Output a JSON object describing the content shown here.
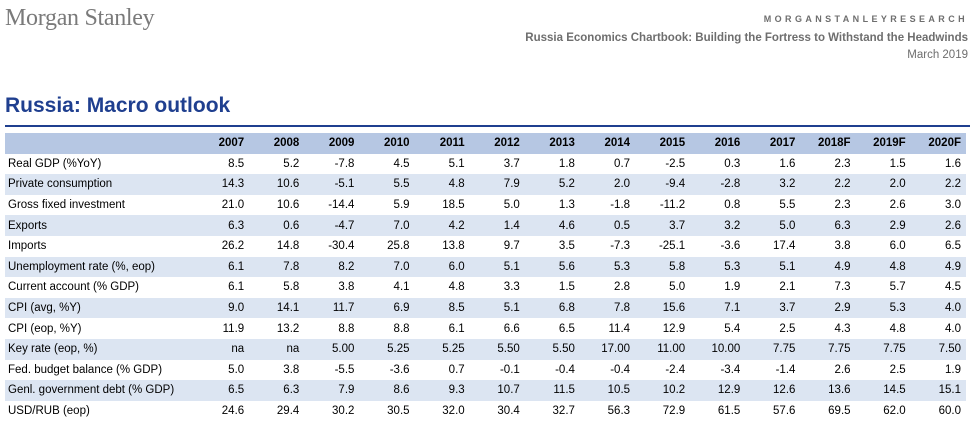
{
  "header": {
    "logo": "Morgan Stanley",
    "research": "MORGANSTANLEYRESEARCH",
    "subtitle": "Russia Economics Chartbook: Building the Fortress to Withstand the Headwinds",
    "date": "March 2019"
  },
  "title": "Russia: Macro outlook",
  "table": {
    "columns": [
      "2007",
      "2008",
      "2009",
      "2010",
      "2011",
      "2012",
      "2013",
      "2014",
      "2015",
      "2016",
      "2017",
      "2018F",
      "2019F",
      "2020F"
    ],
    "rows": [
      {
        "label": "Real GDP (%YoY)",
        "values": [
          "8.5",
          "5.2",
          "-7.8",
          "4.5",
          "5.1",
          "3.7",
          "1.8",
          "0.7",
          "-2.5",
          "0.3",
          "1.6",
          "2.3",
          "1.5",
          "1.6"
        ]
      },
      {
        "label": "Private consumption",
        "values": [
          "14.3",
          "10.6",
          "-5.1",
          "5.5",
          "4.8",
          "7.9",
          "5.2",
          "2.0",
          "-9.4",
          "-2.8",
          "3.2",
          "2.2",
          "2.0",
          "2.2"
        ]
      },
      {
        "label": "Gross fixed investment",
        "values": [
          "21.0",
          "10.6",
          "-14.4",
          "5.9",
          "18.5",
          "5.0",
          "1.3",
          "-1.8",
          "-11.2",
          "0.8",
          "5.5",
          "2.3",
          "2.6",
          "3.0"
        ]
      },
      {
        "label": "Exports",
        "values": [
          "6.3",
          "0.6",
          "-4.7",
          "7.0",
          "4.2",
          "1.4",
          "4.6",
          "0.5",
          "3.7",
          "3.2",
          "5.0",
          "6.3",
          "2.9",
          "2.6"
        ]
      },
      {
        "label": "Imports",
        "values": [
          "26.2",
          "14.8",
          "-30.4",
          "25.8",
          "13.8",
          "9.7",
          "3.5",
          "-7.3",
          "-25.1",
          "-3.6",
          "17.4",
          "3.8",
          "6.0",
          "6.5"
        ]
      },
      {
        "label": "Unemployment rate (%, eop)",
        "values": [
          "6.1",
          "7.8",
          "8.2",
          "7.0",
          "6.0",
          "5.1",
          "5.6",
          "5.3",
          "5.8",
          "5.3",
          "5.1",
          "4.9",
          "4.8",
          "4.9"
        ]
      },
      {
        "label": "Current account (% GDP)",
        "values": [
          "6.1",
          "5.8",
          "3.8",
          "4.1",
          "4.8",
          "3.3",
          "1.5",
          "2.8",
          "5.0",
          "1.9",
          "2.1",
          "7.3",
          "5.7",
          "4.5"
        ]
      },
      {
        "label": "CPI (avg, %Y)",
        "values": [
          "9.0",
          "14.1",
          "11.7",
          "6.9",
          "8.5",
          "5.1",
          "6.8",
          "7.8",
          "15.6",
          "7.1",
          "3.7",
          "2.9",
          "5.3",
          "4.0"
        ]
      },
      {
        "label": "CPI (eop, %Y)",
        "values": [
          "11.9",
          "13.2",
          "8.8",
          "8.8",
          "6.1",
          "6.6",
          "6.5",
          "11.4",
          "12.9",
          "5.4",
          "2.5",
          "4.3",
          "4.8",
          "4.0"
        ]
      },
      {
        "label": "Key rate (eop, %)",
        "values": [
          "na",
          "na",
          "5.00",
          "5.25",
          "5.25",
          "5.50",
          "5.50",
          "17.00",
          "11.00",
          "10.00",
          "7.75",
          "7.75",
          "7.75",
          "7.50"
        ]
      },
      {
        "label": "Fed. budget balance (% GDP)",
        "values": [
          "5.0",
          "3.8",
          "-5.5",
          "-3.6",
          "0.7",
          "-0.1",
          "-0.4",
          "-0.4",
          "-2.4",
          "-3.4",
          "-1.4",
          "2.6",
          "2.5",
          "1.9"
        ]
      },
      {
        "label": "Genl. government debt (% GDP)",
        "values": [
          "6.5",
          "6.3",
          "7.9",
          "8.6",
          "9.3",
          "10.7",
          "11.5",
          "10.5",
          "10.2",
          "12.9",
          "12.6",
          "13.6",
          "14.5",
          "15.1"
        ]
      },
      {
        "label": "USD/RUB (eop)",
        "values": [
          "24.6",
          "29.4",
          "30.2",
          "30.5",
          "32.0",
          "30.4",
          "32.7",
          "56.3",
          "72.9",
          "61.5",
          "57.6",
          "69.5",
          "62.0",
          "60.0"
        ]
      }
    ]
  }
}
